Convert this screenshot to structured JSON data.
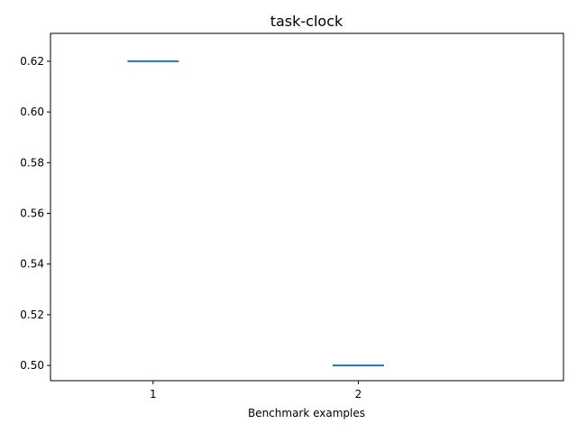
{
  "chart_data": {
    "type": "line",
    "title": "task-clock",
    "xlabel": "Benchmark examples",
    "ylabel": "",
    "x_ticks": [
      "1",
      "2"
    ],
    "y_ticks": [
      "0.50",
      "0.52",
      "0.54",
      "0.56",
      "0.58",
      "0.60",
      "0.62"
    ],
    "xlim": [
      0.5,
      3.0
    ],
    "ylim": [
      0.494,
      0.631
    ],
    "grid": false,
    "series": [
      {
        "color": "#1f77b4",
        "segments": [
          {
            "x": 1,
            "x_start": 0.875,
            "x_end": 1.125,
            "y": 0.62
          },
          {
            "x": 2,
            "x_start": 1.875,
            "x_end": 2.125,
            "y": 0.5
          }
        ]
      }
    ]
  }
}
